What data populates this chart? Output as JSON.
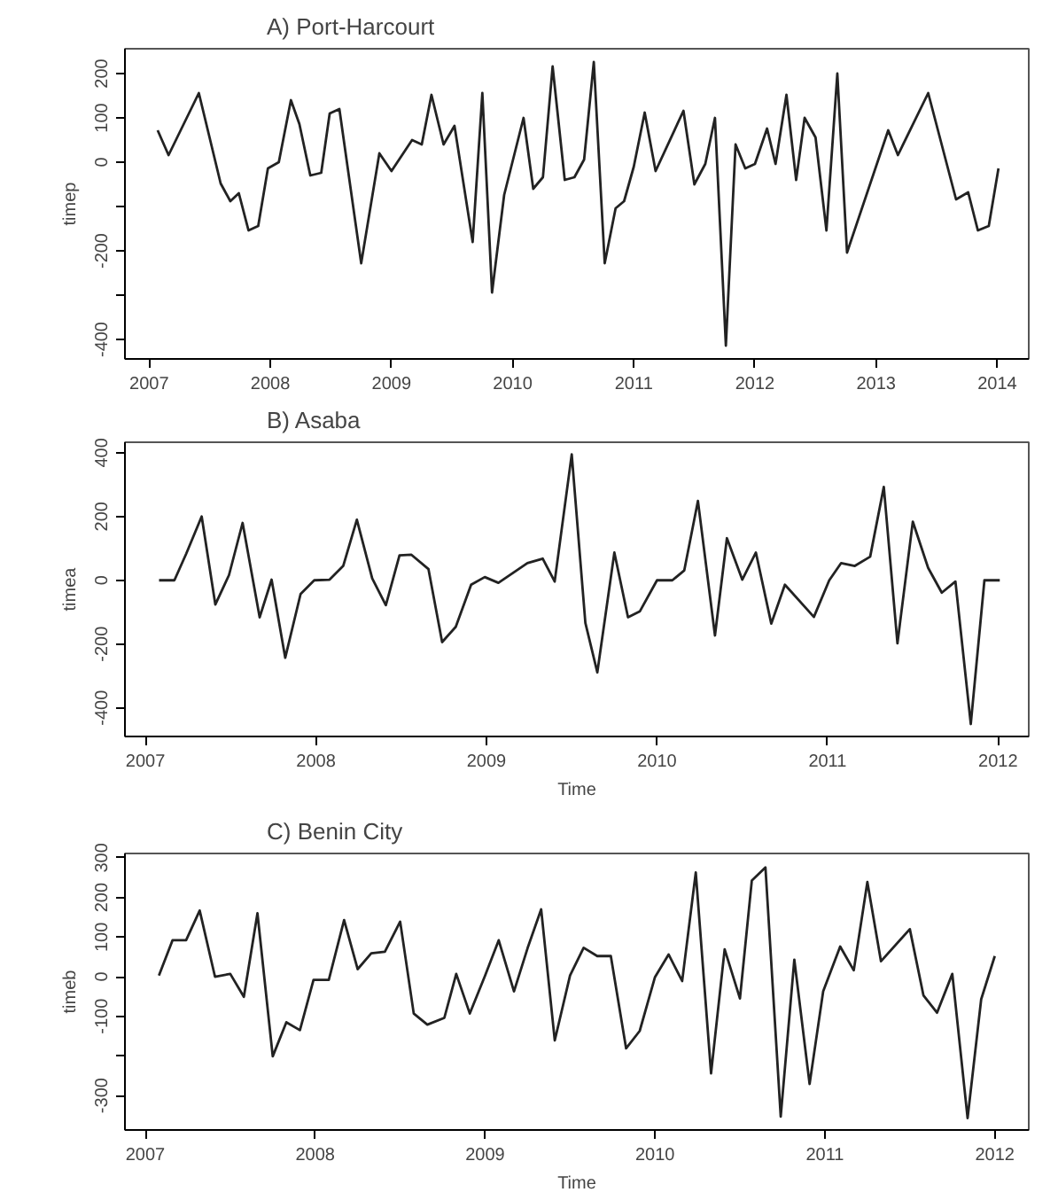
{
  "chart_data": [
    {
      "type": "line",
      "title": "A)   Port-Harcourt",
      "ylabel": "timep",
      "color": "#222222",
      "x": [
        2007.07,
        2007.16,
        2007.41,
        2007.59,
        2007.67,
        2007.74,
        2007.82,
        2007.9,
        2007.98,
        2008.07,
        2008.17,
        2008.24,
        2008.33,
        2008.42,
        2008.49,
        2008.57,
        2008.75,
        2008.9,
        2009.0,
        2009.17,
        2009.25,
        2009.33,
        2009.43,
        2009.52,
        2009.67,
        2009.75,
        2009.83,
        2009.93,
        2010.09,
        2010.17,
        2010.25,
        2010.33,
        2010.43,
        2010.51,
        2010.59,
        2010.67,
        2010.76,
        2010.85,
        2010.92,
        2011.0,
        2011.09,
        2011.18,
        2011.41,
        2011.5,
        2011.59,
        2011.67,
        2011.76,
        2011.84,
        2011.92,
        2012.0,
        2012.1,
        2012.17,
        2012.26,
        2012.34,
        2012.41,
        2012.5,
        2012.59,
        2012.68,
        2012.76,
        2013.1,
        2013.18,
        2013.43,
        2013.66,
        2013.76,
        2013.84,
        2013.93,
        2014.01
      ],
      "values": [
        72,
        16,
        156,
        -48,
        -88,
        -70,
        -154,
        -144,
        -14,
        0,
        140,
        86,
        -30,
        -24,
        110,
        120,
        -228,
        20,
        -20,
        50,
        40,
        152,
        40,
        82,
        -180,
        156,
        -294,
        -74,
        100,
        -60,
        -34,
        216,
        -40,
        -34,
        6,
        226,
        -228,
        -104,
        -88,
        -10,
        112,
        -20,
        116,
        -50,
        -4,
        100,
        -414,
        40,
        -14,
        -4,
        76,
        -4,
        152,
        -40,
        100,
        56,
        -154,
        200,
        -204,
        72,
        16,
        156,
        -84,
        -68,
        -154,
        -144,
        -14
      ],
      "xlim": [
        2006.8,
        2014.26
      ],
      "ylim": [
        -444,
        256
      ],
      "xticks": [
        2007,
        2008,
        2009,
        2010,
        2011,
        2012,
        2013,
        2014
      ],
      "yticks": [
        -400,
        {
          "value": -300,
          "label": null
        },
        -200,
        {
          "value": -100,
          "label": null
        },
        0,
        100,
        200
      ]
    },
    {
      "type": "line",
      "title": "B)   Asaba",
      "xlabel": "Time",
      "ylabel": "timea",
      "color": "#222222",
      "x": [
        2007.08,
        2007.17,
        2007.24,
        2007.33,
        2007.41,
        2007.49,
        2007.57,
        2007.67,
        2007.74,
        2007.82,
        2007.91,
        2007.99,
        2008.08,
        2008.16,
        2008.24,
        2008.33,
        2008.41,
        2008.49,
        2008.56,
        2008.66,
        2008.74,
        2008.82,
        2008.91,
        2008.99,
        2009.07,
        2009.24,
        2009.33,
        2009.4,
        2009.5,
        2009.58,
        2009.65,
        2009.75,
        2009.83,
        2009.9,
        2010.0,
        2010.09,
        2010.16,
        2010.24,
        2010.34,
        2010.41,
        2010.5,
        2010.58,
        2010.67,
        2010.75,
        2010.92,
        2011.01,
        2011.08,
        2011.16,
        2011.25,
        2011.33,
        2011.41,
        2011.5,
        2011.59,
        2011.67,
        2011.75,
        2011.84,
        2011.92,
        2012.01
      ],
      "values": [
        0,
        0,
        84,
        200,
        -76,
        16,
        180,
        -116,
        2,
        -243,
        -43,
        0,
        2,
        45,
        190,
        6,
        -78,
        78,
        80,
        35,
        -194,
        -146,
        -14,
        10,
        -8,
        54,
        68,
        -4,
        395,
        -134,
        -289,
        87,
        -116,
        -97,
        0,
        0,
        31,
        249,
        -173,
        132,
        2,
        87,
        -136,
        -14,
        -115,
        0,
        54,
        45,
        74,
        293,
        -198,
        184,
        39,
        -39,
        -4,
        -451,
        0,
        0
      ],
      "xlim": [
        2006.88,
        2012.18
      ],
      "ylim": [
        -490,
        433
      ],
      "xticks": [
        2007,
        2008,
        2009,
        2010,
        2011,
        2012
      ],
      "yticks": [
        -400,
        -200,
        0,
        200,
        400
      ]
    },
    {
      "type": "line",
      "title": "C)   Benin City",
      "xlabel": "Time",
      "ylabel": "timeb",
      "color": "#222222",
      "x": [
        2007.08,
        2007.16,
        2007.24,
        2007.32,
        2007.41,
        2007.5,
        2007.58,
        2007.66,
        2007.75,
        2007.83,
        2007.91,
        2007.99,
        2008.08,
        2008.17,
        2008.25,
        2008.33,
        2008.41,
        2008.5,
        2008.58,
        2008.66,
        2008.76,
        2008.83,
        2008.91,
        2009.0,
        2009.08,
        2009.17,
        2009.25,
        2009.33,
        2009.41,
        2009.5,
        2009.58,
        2009.66,
        2009.74,
        2009.83,
        2009.91,
        2010.0,
        2010.08,
        2010.16,
        2010.24,
        2010.33,
        2010.41,
        2010.5,
        2010.57,
        2010.65,
        2010.74,
        2010.82,
        2010.91,
        2010.99,
        2011.09,
        2011.17,
        2011.25,
        2011.33,
        2011.5,
        2011.58,
        2011.66,
        2011.75,
        2011.84,
        2011.92,
        2012.0
      ],
      "values": [
        3,
        92,
        92,
        167,
        0,
        7,
        -51,
        160,
        -201,
        -115,
        -135,
        -8,
        -8,
        143,
        19,
        59,
        63,
        139,
        -93,
        -121,
        -104,
        7,
        -93,
        3,
        92,
        -37,
        72,
        170,
        -161,
        3,
        73,
        52,
        52,
        -181,
        -137,
        -1,
        56,
        -11,
        263,
        -244,
        69,
        -55,
        243,
        276,
        -353,
        43,
        -271,
        -37,
        76,
        16,
        239,
        39,
        120,
        -47,
        -91,
        7,
        -357,
        -57,
        52
      ],
      "xlim": [
        2006.88,
        2012.2
      ],
      "ylim": [
        -387,
        311
      ],
      "xticks": [
        2007,
        2008,
        2009,
        2010,
        2011,
        2012
      ],
      "yticks": [
        -300,
        {
          "value": -200,
          "label": null
        },
        -100,
        0,
        100,
        200,
        300
      ]
    }
  ]
}
